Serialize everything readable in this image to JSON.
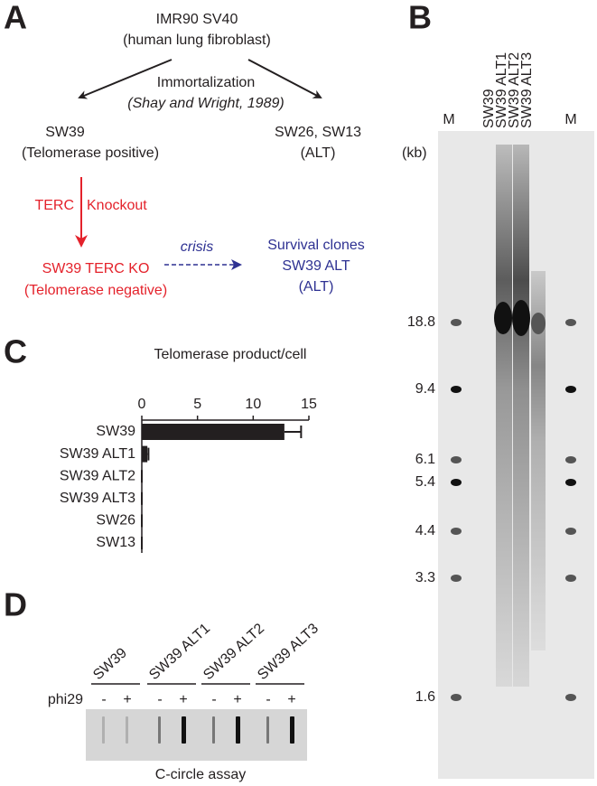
{
  "panel_a": {
    "label": "A",
    "root": [
      "IMR90 SV40",
      "(human lung fibroblast)"
    ],
    "process": [
      "Immortalization",
      "(Shay and Wright, 1989)"
    ],
    "left": [
      "SW39",
      "(Telomerase positive)"
    ],
    "right": [
      "SW26, SW13",
      "(ALT)"
    ],
    "knockout": [
      "TERC",
      "Knockout"
    ],
    "ko": [
      "SW39 TERC KO",
      "(Telomerase negative)"
    ],
    "crisis": "crisis",
    "survival": [
      "Survival clones",
      "SW39 ALT",
      "(ALT)"
    ]
  },
  "panel_b": {
    "label": "B",
    "lanes": [
      "M",
      "SW39",
      "SW39 ALT1",
      "SW39 ALT2",
      "SW39 ALT3",
      "M"
    ],
    "unit": "(kb)",
    "sizes": [
      "18.8",
      "9.4",
      "6.1",
      "5.4",
      "4.4",
      "3.3",
      "1.6"
    ]
  },
  "panel_c": {
    "label": "C"
  },
  "chart_data": {
    "type": "bar",
    "orientation": "horizontal",
    "title": "Telomerase product/cell",
    "categories": [
      "SW39",
      "SW39 ALT1",
      "SW39 ALT2",
      "SW39 ALT3",
      "SW26",
      "SW13"
    ],
    "values": [
      12.8,
      0.5,
      0,
      0,
      0,
      0
    ],
    "errors": [
      1.5,
      0.1,
      0,
      0,
      0,
      0
    ],
    "color": "#231f20",
    "xlim": [
      0,
      15
    ],
    "xticks": [
      0,
      5,
      10,
      15
    ]
  },
  "panel_d": {
    "label": "D",
    "samples": [
      "SW39",
      "SW39 ALT1",
      "SW39 ALT2",
      "SW39 ALT3"
    ],
    "row_label": "phi29",
    "signs": [
      "-",
      "+"
    ],
    "caption": "C-circle assay"
  }
}
